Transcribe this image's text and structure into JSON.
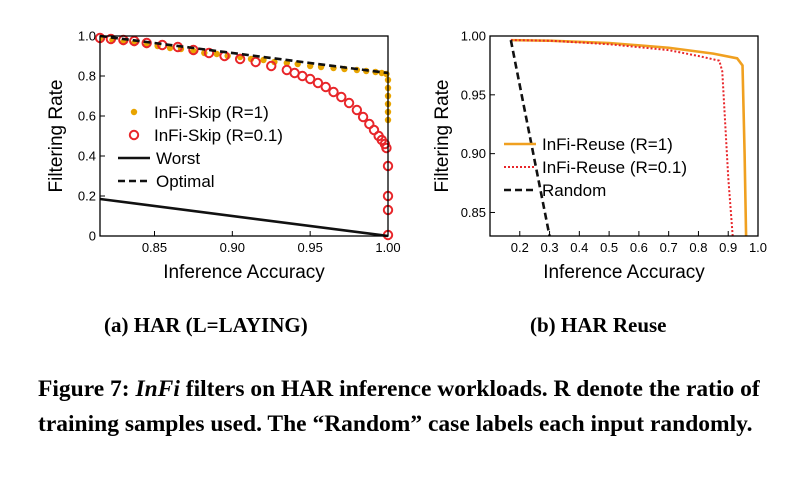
{
  "chart_data": [
    {
      "type": "scatter",
      "subcaption": "(a) HAR (L=LAYING)",
      "xlabel": "Inference Accuracy",
      "ylabel": "Filtering Rate",
      "xlim": [
        0.815,
        1.0
      ],
      "ylim": [
        0,
        1.0
      ],
      "xticks": [
        "0.85",
        "0.90",
        "0.95",
        "1.00"
      ],
      "yticks": [
        "0",
        "0.2",
        "0.4",
        "0.6",
        "0.8",
        "1.0"
      ],
      "legend_position": "lower-left",
      "series": [
        {
          "name": "InFi-Skip (R=1)",
          "color": "#e8a400",
          "marker": "dot",
          "x": [
            0.815,
            0.823,
            0.83,
            0.837,
            0.845,
            0.852,
            0.86,
            0.867,
            0.875,
            0.882,
            0.89,
            0.897,
            0.905,
            0.912,
            0.92,
            0.927,
            0.935,
            0.942,
            0.95,
            0.957,
            0.965,
            0.972,
            0.98,
            0.986,
            0.992,
            0.996,
            0.999,
            1.0,
            1.0,
            1.0,
            1.0,
            1.0,
            1.0
          ],
          "y": [
            0.99,
            0.98,
            0.97,
            0.965,
            0.955,
            0.95,
            0.94,
            0.935,
            0.925,
            0.915,
            0.91,
            0.9,
            0.895,
            0.885,
            0.88,
            0.87,
            0.865,
            0.86,
            0.85,
            0.845,
            0.84,
            0.835,
            0.83,
            0.825,
            0.82,
            0.815,
            0.81,
            0.78,
            0.74,
            0.7,
            0.66,
            0.62,
            0.58
          ]
        },
        {
          "name": "InFi-Skip (R=0.1)",
          "color": "#e8262a",
          "marker": "ring",
          "x": [
            0.815,
            0.822,
            0.83,
            0.837,
            0.845,
            0.855,
            0.865,
            0.875,
            0.885,
            0.895,
            0.905,
            0.915,
            0.925,
            0.935,
            0.94,
            0.945,
            0.95,
            0.955,
            0.96,
            0.965,
            0.97,
            0.975,
            0.98,
            0.984,
            0.988,
            0.991,
            0.994,
            0.996,
            0.998,
            0.999,
            1.0,
            1.0,
            1.0,
            1.0
          ],
          "y": [
            0.99,
            0.985,
            0.98,
            0.975,
            0.965,
            0.955,
            0.945,
            0.93,
            0.915,
            0.9,
            0.885,
            0.87,
            0.85,
            0.83,
            0.815,
            0.8,
            0.785,
            0.765,
            0.745,
            0.72,
            0.695,
            0.665,
            0.63,
            0.595,
            0.56,
            0.53,
            0.5,
            0.48,
            0.46,
            0.44,
            0.35,
            0.2,
            0.13,
            0.005
          ]
        },
        {
          "name": "Worst",
          "color": "#111111",
          "style": "solid",
          "x": [
            0.815,
            1.0
          ],
          "y": [
            0.185,
            0.0
          ]
        },
        {
          "name": "Optimal",
          "color": "#111111",
          "style": "dashed",
          "x": [
            0.815,
            1.0
          ],
          "y": [
            1.0,
            0.815
          ]
        }
      ]
    },
    {
      "type": "line",
      "subcaption": "(b) HAR Reuse",
      "xlabel": "Inference Accuracy",
      "ylabel": "Filtering Rate",
      "xlim": [
        0.1,
        1.0
      ],
      "ylim": [
        0.83,
        1.0
      ],
      "xticks": [
        "0.2",
        "0.3",
        "0.4",
        "0.5",
        "0.6",
        "0.7",
        "0.8",
        "0.9",
        "1.0"
      ],
      "yticks": [
        "0.85",
        "0.90",
        "0.95",
        "1.00"
      ],
      "legend_position": "lower-left",
      "series": [
        {
          "name": "InFi-Reuse (R=1)",
          "color": "#f0a020",
          "style": "solid",
          "x": [
            0.17,
            0.3,
            0.5,
            0.7,
            0.85,
            0.93,
            0.948,
            0.955,
            0.96
          ],
          "y": [
            0.9965,
            0.996,
            0.994,
            0.99,
            0.985,
            0.981,
            0.975,
            0.9,
            0.83
          ]
        },
        {
          "name": "InFi-Reuse (R=0.1)",
          "color": "#e8262a",
          "style": "dotted",
          "x": [
            0.17,
            0.3,
            0.5,
            0.7,
            0.8,
            0.87,
            0.88,
            0.9,
            0.915
          ],
          "y": [
            0.9965,
            0.996,
            0.993,
            0.988,
            0.983,
            0.979,
            0.97,
            0.88,
            0.83
          ]
        },
        {
          "name": "Random",
          "color": "#111111",
          "style": "dashed",
          "x": [
            0.17,
            0.3
          ],
          "y": [
            0.9965,
            0.83
          ]
        }
      ]
    }
  ],
  "caption": {
    "prefix": "Figure 7: ",
    "emph": "InFi",
    "text": " filters on HAR inference workloads. R denote the ratio of training samples used. The “Random” case labels each input randomly."
  }
}
